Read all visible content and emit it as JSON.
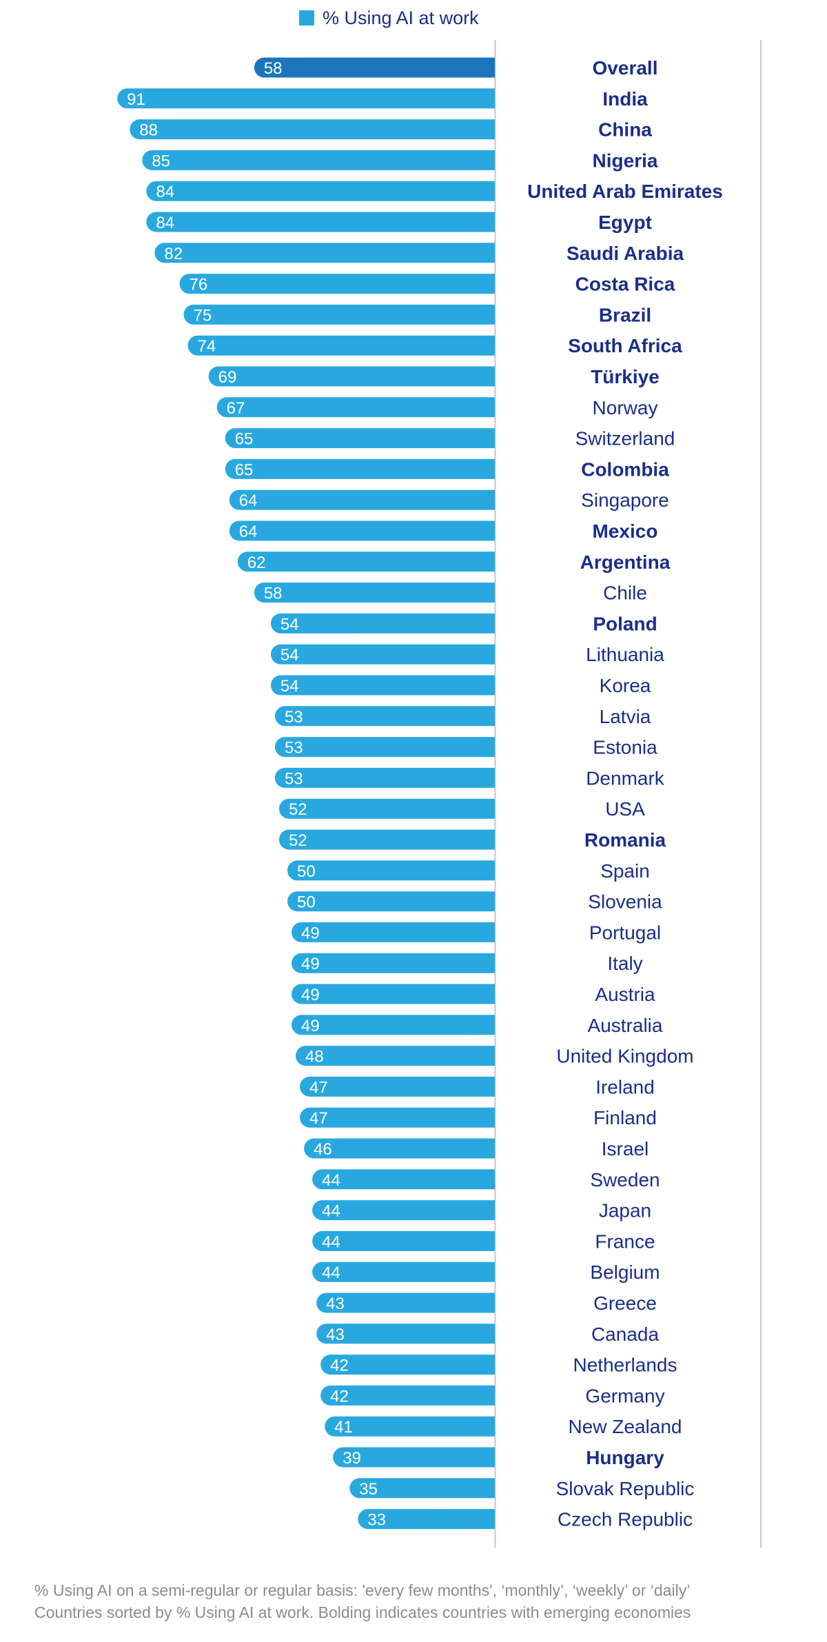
{
  "legend": {
    "label": "% Using AI at work",
    "color": "#29a8e0"
  },
  "colors": {
    "bar": "#29a8e0",
    "overall_bar": "#1c75bc",
    "label_text": "#1a2e8a",
    "value_text": "#ffffff",
    "axis_line": "#c8c8c8",
    "footnote": "#8c8c8c"
  },
  "chart_data": {
    "type": "bar",
    "orientation": "horizontal",
    "direction": "bars extend leftward from a shared baseline",
    "xlim": [
      0,
      100
    ],
    "series": [
      {
        "name": "% Using AI at work"
      }
    ],
    "rows": [
      {
        "label": "Overall",
        "value": 58,
        "bold": true,
        "overall": true
      },
      {
        "label": "India",
        "value": 91,
        "bold": true
      },
      {
        "label": "China",
        "value": 88,
        "bold": true
      },
      {
        "label": "Nigeria",
        "value": 85,
        "bold": true
      },
      {
        "label": "United Arab Emirates",
        "value": 84,
        "bold": true
      },
      {
        "label": "Egypt",
        "value": 84,
        "bold": true
      },
      {
        "label": "Saudi Arabia",
        "value": 82,
        "bold": true
      },
      {
        "label": "Costa Rica",
        "value": 76,
        "bold": true
      },
      {
        "label": "Brazil",
        "value": 75,
        "bold": true
      },
      {
        "label": "South Africa",
        "value": 74,
        "bold": true
      },
      {
        "label": "Türkiye",
        "value": 69,
        "bold": true
      },
      {
        "label": "Norway",
        "value": 67,
        "bold": false
      },
      {
        "label": "Switzerland",
        "value": 65,
        "bold": false
      },
      {
        "label": "Colombia",
        "value": 65,
        "bold": true
      },
      {
        "label": "Singapore",
        "value": 64,
        "bold": false
      },
      {
        "label": "Mexico",
        "value": 64,
        "bold": true
      },
      {
        "label": "Argentina",
        "value": 62,
        "bold": true
      },
      {
        "label": "Chile",
        "value": 58,
        "bold": false
      },
      {
        "label": "Poland",
        "value": 54,
        "bold": true
      },
      {
        "label": "Lithuania",
        "value": 54,
        "bold": false
      },
      {
        "label": "Korea",
        "value": 54,
        "bold": false
      },
      {
        "label": "Latvia",
        "value": 53,
        "bold": false
      },
      {
        "label": "Estonia",
        "value": 53,
        "bold": false
      },
      {
        "label": "Denmark",
        "value": 53,
        "bold": false
      },
      {
        "label": "USA",
        "value": 52,
        "bold": false
      },
      {
        "label": "Romania",
        "value": 52,
        "bold": true
      },
      {
        "label": "Spain",
        "value": 50,
        "bold": false
      },
      {
        "label": "Slovenia",
        "value": 50,
        "bold": false
      },
      {
        "label": "Portugal",
        "value": 49,
        "bold": false
      },
      {
        "label": "Italy",
        "value": 49,
        "bold": false
      },
      {
        "label": "Austria",
        "value": 49,
        "bold": false
      },
      {
        "label": "Australia",
        "value": 49,
        "bold": false
      },
      {
        "label": "United Kingdom",
        "value": 48,
        "bold": false
      },
      {
        "label": "Ireland",
        "value": 47,
        "bold": false
      },
      {
        "label": "Finland",
        "value": 47,
        "bold": false
      },
      {
        "label": "Israel",
        "value": 46,
        "bold": false
      },
      {
        "label": "Sweden",
        "value": 44,
        "bold": false
      },
      {
        "label": "Japan",
        "value": 44,
        "bold": false
      },
      {
        "label": "France",
        "value": 44,
        "bold": false
      },
      {
        "label": "Belgium",
        "value": 44,
        "bold": false
      },
      {
        "label": "Greece",
        "value": 43,
        "bold": false
      },
      {
        "label": "Canada",
        "value": 43,
        "bold": false
      },
      {
        "label": "Netherlands",
        "value": 42,
        "bold": false
      },
      {
        "label": "Germany",
        "value": 42,
        "bold": false
      },
      {
        "label": "New Zealand",
        "value": 41,
        "bold": false
      },
      {
        "label": "Hungary",
        "value": 39,
        "bold": true
      },
      {
        "label": "Slovak Republic",
        "value": 35,
        "bold": false
      },
      {
        "label": "Czech Republic",
        "value": 33,
        "bold": false
      }
    ]
  },
  "footnotes": {
    "line1": "% Using AI on a semi-regular or regular basis: 'every few months', ‘monthly’, ‘weekly’ or ‘daily’",
    "line2": "Countries sorted by % Using AI at work. Bolding indicates countries with emerging economies"
  }
}
